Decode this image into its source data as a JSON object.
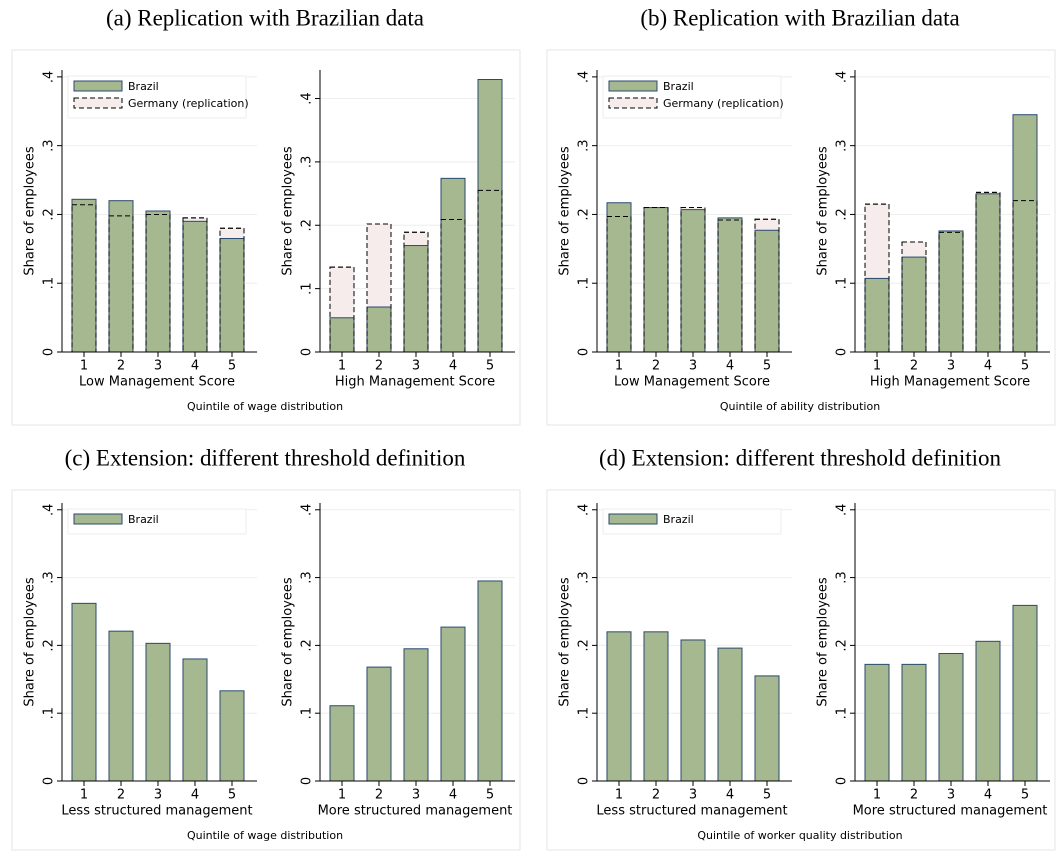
{
  "chart_data": [
    {
      "type": "bar",
      "title": "(a) Replication with Brazilian data",
      "xlabel": "Quintile of wage distribution",
      "subplots": [
        {
          "xlabel": "Low Management Score",
          "ylabel": "Share of employees",
          "categories": [
            "1",
            "2",
            "3",
            "4",
            "5"
          ],
          "series": [
            {
              "name": "Brazil",
              "color": "#a6b890",
              "edgecolor": "#2a4a6e",
              "values": [
                0.222,
                0.22,
                0.205,
                0.19,
                0.165
              ]
            },
            {
              "name": "Germany (replication)",
              "color": "#f6ecec",
              "edgecolor": "#000000",
              "values": [
                0.214,
                0.198,
                0.2,
                0.195,
                0.18
              ]
            }
          ],
          "ylim": [
            0,
            0.41
          ],
          "yticks": [
            0,
            {
              "value": 0.1,
              "label": ".1"
            },
            {
              "value": 0.2,
              "label": ".2"
            },
            {
              "value": 0.3,
              "label": ".3"
            },
            {
              "value": 0.4,
              "label": ".4"
            }
          ],
          "grid": true,
          "legend": "top left"
        },
        {
          "xlabel": "High Management Score",
          "ylabel": "Share of employees",
          "categories": [
            "1",
            "2",
            "3",
            "4",
            "5"
          ],
          "series": [
            {
              "color": "#a6b890",
              "edgecolor": "#2a4a6e",
              "values": [
                0.054,
                0.071,
                0.168,
                0.274,
                0.43
              ]
            },
            {
              "color": "#f6ecec",
              "edgecolor": "#000000",
              "values": [
                0.134,
                0.202,
                0.189,
                0.209,
                0.255
              ]
            }
          ],
          "ylim": [
            0,
            0.445
          ],
          "yticks": [
            0,
            {
              "value": 0.1,
              "label": ".1"
            },
            {
              "value": 0.2,
              "label": ".2"
            },
            {
              "value": 0.3,
              "label": ".3"
            },
            {
              "value": 0.4,
              "label": ".4"
            }
          ],
          "grid": true
        }
      ]
    },
    {
      "type": "bar",
      "title": "(b) Replication with Brazilian data",
      "xlabel": "Quintile of ability distribution",
      "subplots": [
        {
          "xlabel": "Low Management Score",
          "ylabel": "Share of employees",
          "categories": [
            "1",
            "2",
            "3",
            "4",
            "5"
          ],
          "series": [
            {
              "name": "Brazil",
              "color": "#a6b890",
              "edgecolor": "#2a4a6e",
              "values": [
                0.217,
                0.21,
                0.207,
                0.195,
                0.177
              ]
            },
            {
              "name": "Germany (replication)",
              "color": "#f6ecec",
              "edgecolor": "#000000",
              "values": [
                0.197,
                0.21,
                0.21,
                0.192,
                0.193
              ]
            }
          ],
          "ylim": [
            0,
            0.41
          ],
          "yticks": [
            0,
            {
              "value": 0.1,
              "label": ".1"
            },
            {
              "value": 0.2,
              "label": ".2"
            },
            {
              "value": 0.3,
              "label": ".3"
            },
            {
              "value": 0.4,
              "label": ".4"
            }
          ],
          "grid": true,
          "legend": "top left"
        },
        {
          "xlabel": "High Management Score",
          "ylabel": "Share of employees",
          "categories": [
            "1",
            "2",
            "3",
            "4",
            "5"
          ],
          "series": [
            {
              "color": "#a6b890",
              "edgecolor": "#2a4a6e",
              "values": [
                0.107,
                0.138,
                0.176,
                0.23,
                0.345
              ]
            },
            {
              "color": "#f6ecec",
              "edgecolor": "#000000",
              "values": [
                0.215,
                0.16,
                0.174,
                0.232,
                0.22
              ]
            }
          ],
          "ylim": [
            0,
            0.41
          ],
          "yticks": [
            0,
            {
              "value": 0.1,
              "label": ".1"
            },
            {
              "value": 0.2,
              "label": ".2"
            },
            {
              "value": 0.3,
              "label": ".3"
            },
            {
              "value": 0.4,
              "label": ".4"
            }
          ],
          "grid": true
        }
      ]
    },
    {
      "type": "bar",
      "title": "(c) Extension: different threshold definition",
      "xlabel": "Quintile of wage distribution",
      "subplots": [
        {
          "xlabel": "Less structured management",
          "ylabel": "Share of employees",
          "categories": [
            "1",
            "2",
            "3",
            "4",
            "5"
          ],
          "series": [
            {
              "name": "Brazil",
              "color": "#a6b890",
              "edgecolor": "#2a4a6e",
              "values": [
                0.262,
                0.221,
                0.203,
                0.18,
                0.133
              ]
            }
          ],
          "ylim": [
            0,
            0.41
          ],
          "yticks": [
            0,
            {
              "value": 0.1,
              "label": ".1"
            },
            {
              "value": 0.2,
              "label": ".2"
            },
            {
              "value": 0.3,
              "label": ".3"
            },
            {
              "value": 0.4,
              "label": ".4"
            }
          ],
          "grid": true,
          "legend": "top left"
        },
        {
          "xlabel": "More structured management",
          "ylabel": "Share of employees",
          "categories": [
            "1",
            "2",
            "3",
            "4",
            "5"
          ],
          "series": [
            {
              "color": "#a6b890",
              "edgecolor": "#2a4a6e",
              "values": [
                0.111,
                0.168,
                0.195,
                0.227,
                0.295
              ]
            }
          ],
          "ylim": [
            0,
            0.41
          ],
          "yticks": [
            0,
            {
              "value": 0.1,
              "label": ".1"
            },
            {
              "value": 0.2,
              "label": ".2"
            },
            {
              "value": 0.3,
              "label": ".3"
            },
            {
              "value": 0.4,
              "label": ".4"
            }
          ],
          "grid": true
        }
      ]
    },
    {
      "type": "bar",
      "title": "(d) Extension: different threshold definition",
      "xlabel": "Quintile of worker quality distribution",
      "subplots": [
        {
          "xlabel": "Less structured management",
          "ylabel": "Share of employees",
          "categories": [
            "1",
            "2",
            "3",
            "4",
            "5"
          ],
          "series": [
            {
              "name": "Brazil",
              "color": "#a6b890",
              "edgecolor": "#2a4a6e",
              "values": [
                0.22,
                0.22,
                0.208,
                0.196,
                0.155
              ]
            }
          ],
          "ylim": [
            0,
            0.41
          ],
          "yticks": [
            0,
            {
              "value": 0.1,
              "label": ".1"
            },
            {
              "value": 0.2,
              "label": ".2"
            },
            {
              "value": 0.3,
              "label": ".3"
            },
            {
              "value": 0.4,
              "label": ".4"
            }
          ],
          "grid": true,
          "legend": "top left"
        },
        {
          "xlabel": "More structured management",
          "ylabel": "Share of employees",
          "categories": [
            "1",
            "2",
            "3",
            "4",
            "5"
          ],
          "series": [
            {
              "color": "#a6b890",
              "edgecolor": "#2a4a6e",
              "values": [
                0.172,
                0.172,
                0.188,
                0.206,
                0.259
              ]
            }
          ],
          "ylim": [
            0,
            0.41
          ],
          "yticks": [
            0,
            {
              "value": 0.1,
              "label": ".1"
            },
            {
              "value": 0.2,
              "label": ".2"
            },
            {
              "value": 0.3,
              "label": ".3"
            },
            {
              "value": 0.4,
              "label": ".4"
            }
          ],
          "grid": true
        }
      ]
    }
  ]
}
